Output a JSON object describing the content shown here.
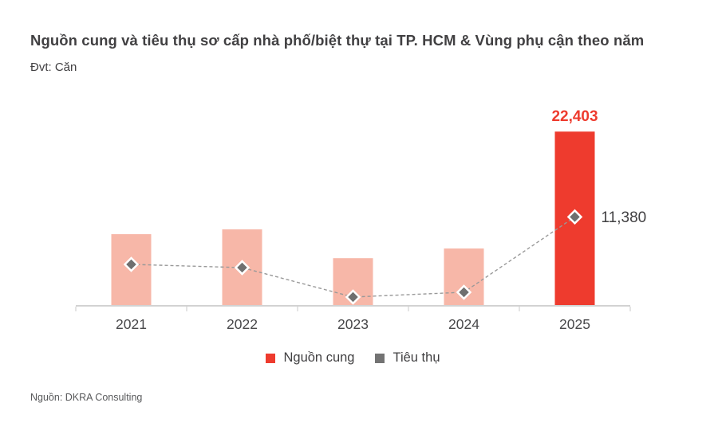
{
  "header": {
    "title": "Nguồn cung và tiêu thụ sơ cấp nhà phố/biệt thự tại TP. HCM & Vùng phụ cận theo năm",
    "unit_label": "Đvt: Căn"
  },
  "footer": {
    "source": "Nguồn: DKRA Consulting"
  },
  "colors": {
    "accent_red": "#EE3B2E",
    "bar_pink": "#F7B7A8",
    "marker_gray": "#6F6F6F",
    "legend_gray": "#737373",
    "line_gray": "#999999",
    "axis_gray": "#D2D2D2",
    "text_dark": "#414042",
    "tick_label_gray": "#48484A"
  },
  "chart_data": {
    "type": "bar",
    "title": "Nguồn cung và tiêu thụ sơ cấp nhà phố/biệt thự tại TP. HCM & Vùng phụ cận theo năm",
    "unit": "Căn",
    "categories": [
      "2021",
      "2022",
      "2023",
      "2024",
      "2025"
    ],
    "series": [
      {
        "name": "Nguồn cung",
        "type": "bar",
        "values": [
          9150,
          9770,
          6050,
          7300,
          22403
        ],
        "labels": [
          null,
          null,
          null,
          null,
          "22,403"
        ]
      },
      {
        "name": "Tiêu thụ",
        "type": "line",
        "values": [
          5250,
          4830,
          1030,
          1650,
          11380
        ],
        "labels": [
          null,
          null,
          null,
          null,
          "11,380"
        ]
      }
    ],
    "highlight_index": 4,
    "ylim": [
      0,
      25000
    ],
    "grid": false,
    "legend_position": "bottom"
  }
}
